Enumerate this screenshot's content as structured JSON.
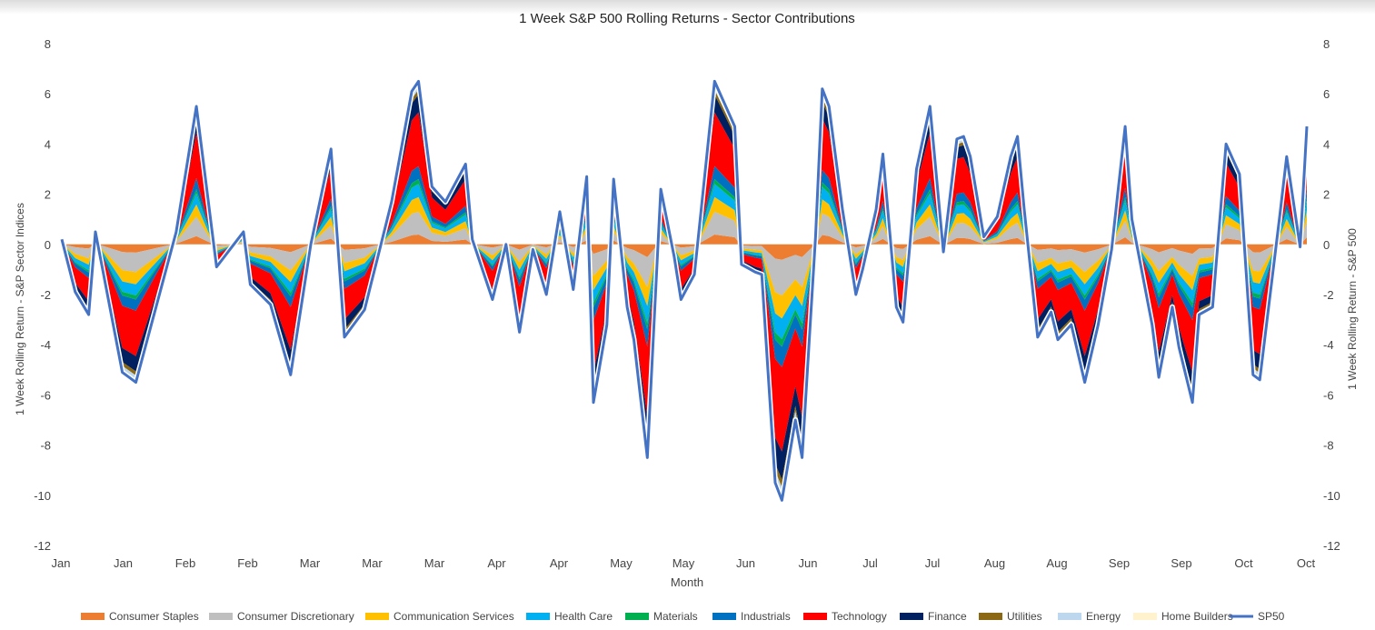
{
  "chart_data": {
    "type": "area",
    "title": "1 Week S&P 500 Rolling Returns - Sector Contributions",
    "xlabel": "Month",
    "ylabel_left": "1 Week Rolling Return - S&P Sector Indices",
    "ylabel_right": "1 Week Rolling Return - S&P 500",
    "ylim": [
      -12,
      8
    ],
    "yticks": [
      8,
      6,
      4,
      2,
      0,
      -2,
      -4,
      -6,
      -8,
      -10,
      -12
    ],
    "months": [
      "Jan",
      "Jan",
      "Feb",
      "Feb",
      "Mar",
      "Mar",
      "Mar",
      "Apr",
      "Apr",
      "May",
      "May",
      "Jun",
      "Jun",
      "Jul",
      "Jul",
      "Aug",
      "Aug",
      "Sep",
      "Sep",
      "Oct",
      "Oct"
    ],
    "sp500_key": [
      [
        0,
        0.2
      ],
      [
        2,
        -1.9
      ],
      [
        4,
        -2.8
      ],
      [
        5,
        0.5
      ],
      [
        9,
        -5.1
      ],
      [
        11,
        -5.5
      ],
      [
        17,
        0.5
      ],
      [
        20,
        5.5
      ],
      [
        23,
        -0.9
      ],
      [
        27,
        0.5
      ],
      [
        28,
        -1.6
      ],
      [
        31,
        -2.4
      ],
      [
        34,
        -5.2
      ],
      [
        37,
        0
      ],
      [
        40,
        3.8
      ],
      [
        42,
        -3.7
      ],
      [
        45,
        -2.6
      ],
      [
        49,
        1.7
      ],
      [
        52,
        6.1
      ],
      [
        53,
        6.5
      ],
      [
        55,
        2.3
      ],
      [
        57,
        1.7
      ],
      [
        60,
        3.2
      ],
      [
        61,
        0.2
      ],
      [
        64,
        -2.2
      ],
      [
        66,
        0
      ],
      [
        68,
        -3.5
      ],
      [
        70,
        -0.2
      ],
      [
        72,
        -2
      ],
      [
        74,
        1.3
      ],
      [
        76,
        -1.8
      ],
      [
        78,
        2.7
      ],
      [
        79,
        -6.3
      ],
      [
        81,
        -3.2
      ],
      [
        82,
        2.6
      ],
      [
        84,
        -2.5
      ],
      [
        85,
        -3.8
      ],
      [
        87,
        -8.5
      ],
      [
        89,
        2.2
      ],
      [
        91,
        -0.5
      ],
      [
        92,
        -2.2
      ],
      [
        94,
        -1.2
      ],
      [
        97,
        6.5
      ],
      [
        100,
        4.7
      ],
      [
        101,
        -0.8
      ],
      [
        103,
        -1.1
      ],
      [
        104,
        -1.2
      ],
      [
        106,
        -9.5
      ],
      [
        107,
        -10.2
      ],
      [
        109,
        -7
      ],
      [
        110,
        -8.5
      ],
      [
        112,
        0.3
      ],
      [
        113,
        6.2
      ],
      [
        114,
        5.5
      ],
      [
        116,
        1.4
      ],
      [
        118,
        -2
      ],
      [
        119,
        -1
      ],
      [
        121,
        1.4
      ],
      [
        122,
        3.6
      ],
      [
        124,
        -2.5
      ],
      [
        125,
        -3.1
      ],
      [
        127,
        3
      ],
      [
        129,
        5.5
      ],
      [
        131,
        -0.3
      ],
      [
        133,
        4.2
      ],
      [
        134,
        4.3
      ],
      [
        135,
        3.5
      ],
      [
        137,
        0.3
      ],
      [
        139,
        1.1
      ],
      [
        141,
        3.5
      ],
      [
        142,
        4.3
      ],
      [
        143,
        1.4
      ],
      [
        145,
        -3.7
      ],
      [
        147,
        -2.7
      ],
      [
        148,
        -3.8
      ],
      [
        150,
        -3.2
      ],
      [
        152,
        -5.5
      ],
      [
        154,
        -3.2
      ],
      [
        156,
        -0.2
      ],
      [
        158,
        4.7
      ],
      [
        159,
        1
      ],
      [
        162,
        -3.2
      ],
      [
        163,
        -5.3
      ],
      [
        165,
        -2.5
      ],
      [
        166,
        -4.1
      ],
      [
        168,
        -6.3
      ],
      [
        169,
        -2.8
      ],
      [
        171,
        -2.5
      ],
      [
        173,
        4
      ],
      [
        175,
        2.8
      ],
      [
        177,
        -5.2
      ],
      [
        178,
        -5.4
      ],
      [
        181,
        1.2
      ],
      [
        182,
        3.5
      ],
      [
        184,
        -0.1
      ],
      [
        185,
        4.7
      ]
    ],
    "sp500_count": 186,
    "sectors": [
      {
        "name": "Consumer Staples",
        "share": 0.06,
        "color": "#ED7D31"
      },
      {
        "name": "Consumer Discretionary",
        "share": 0.14,
        "color": "#BFBFBF"
      },
      {
        "name": "Communication Services",
        "share": 0.09,
        "color": "#FFC000"
      },
      {
        "name": "Health Care",
        "share": 0.08,
        "color": "#00B0F0"
      },
      {
        "name": "Materials",
        "share": 0.03,
        "color": "#00B050"
      },
      {
        "name": "Industrials",
        "share": 0.08,
        "color": "#0070C0"
      },
      {
        "name": "Technology",
        "share": 0.33,
        "color": "#FF0000"
      },
      {
        "name": "Finance",
        "share": 0.11,
        "color": "#002060"
      },
      {
        "name": "Utilities",
        "share": 0.03,
        "color": "#8B6914"
      },
      {
        "name": "Energy",
        "share": 0.04,
        "color": "#BDD7EE"
      },
      {
        "name": "Home Builders",
        "share": 0.01,
        "color": "#FFF2CC"
      }
    ],
    "sp500_series": {
      "name": "SP50",
      "color": "#4472C4"
    },
    "legend_position": "bottom"
  }
}
